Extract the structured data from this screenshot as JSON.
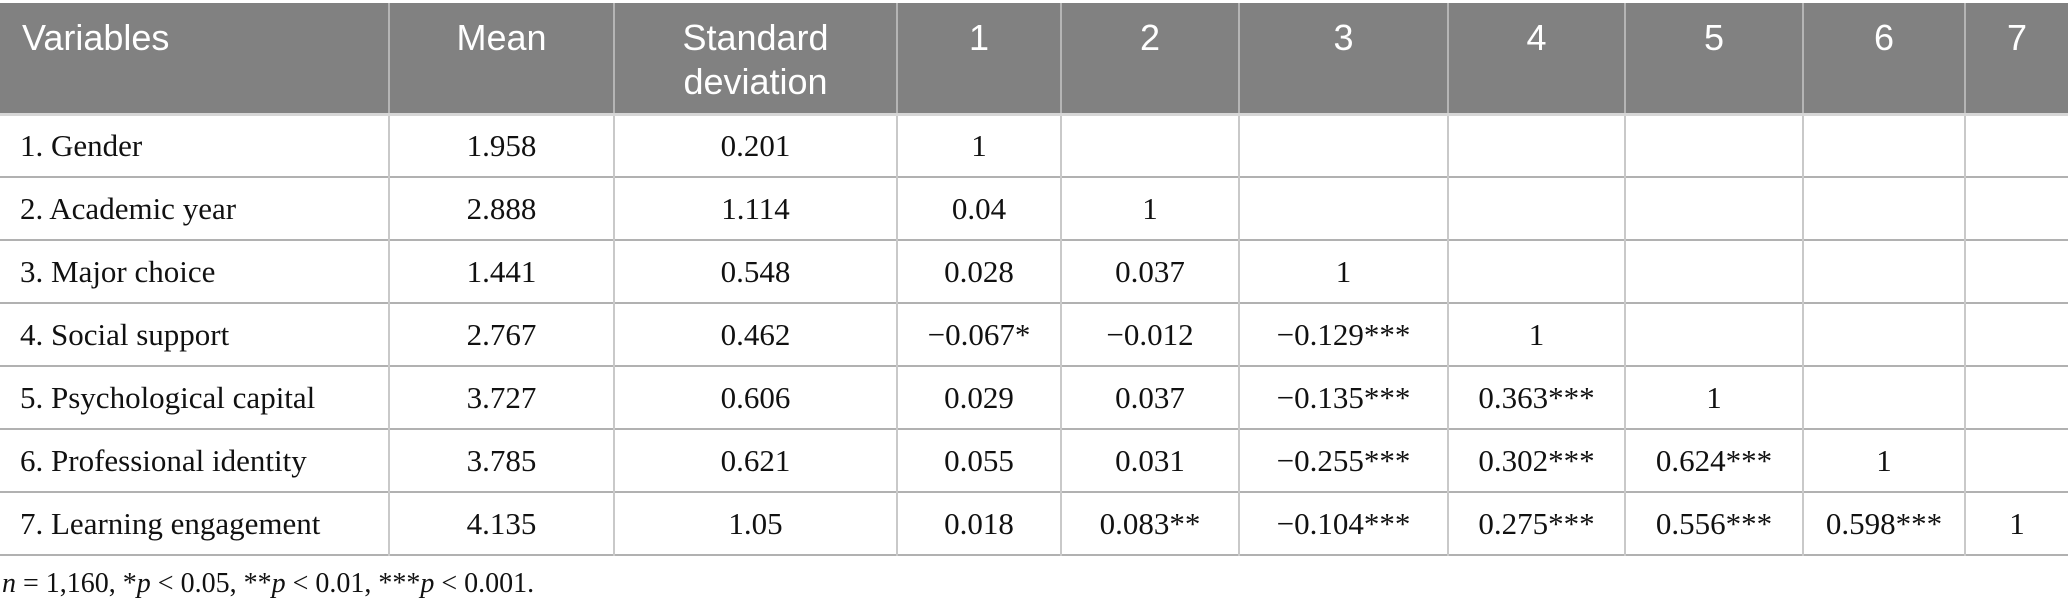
{
  "table": {
    "columns": [
      "Variables",
      "Mean",
      "Standard deviation",
      "1",
      "2",
      "3",
      "4",
      "5",
      "6",
      "7"
    ],
    "rows": [
      {
        "label": "1. Gender",
        "mean": "1.958",
        "sd": "0.201",
        "r": [
          "1",
          "",
          "",
          "",
          "",
          "",
          ""
        ]
      },
      {
        "label": "2. Academic year",
        "mean": "2.888",
        "sd": "1.114",
        "r": [
          "0.04",
          "1",
          "",
          "",
          "",
          "",
          ""
        ]
      },
      {
        "label": "3. Major choice",
        "mean": "1.441",
        "sd": "0.548",
        "r": [
          "0.028",
          "0.037",
          "1",
          "",
          "",
          "",
          ""
        ]
      },
      {
        "label": "4. Social support",
        "mean": "2.767",
        "sd": "0.462",
        "r": [
          "−0.067*",
          "−0.012",
          "−0.129***",
          "1",
          "",
          "",
          ""
        ]
      },
      {
        "label": "5. Psychological capital",
        "mean": "3.727",
        "sd": "0.606",
        "r": [
          "0.029",
          "0.037",
          "−0.135***",
          "0.363***",
          "1",
          "",
          ""
        ]
      },
      {
        "label": "6. Professional identity",
        "mean": "3.785",
        "sd": "0.621",
        "r": [
          "0.055",
          "0.031",
          "−0.255***",
          "0.302***",
          "0.624***",
          "1",
          ""
        ]
      },
      {
        "label": "7. Learning engagement",
        "mean": "4.135",
        "sd": "1.05",
        "r": [
          "0.018",
          "0.083**",
          "−0.104***",
          "0.275***",
          "0.556***",
          "0.598***",
          "1"
        ]
      }
    ]
  },
  "footnote": {
    "segments": [
      {
        "text": "n",
        "italic": true
      },
      {
        "text": " = 1,160, *",
        "italic": false
      },
      {
        "text": "p",
        "italic": true
      },
      {
        "text": " < 0.05, **",
        "italic": false
      },
      {
        "text": "p",
        "italic": true
      },
      {
        "text": " < 0.01, ***",
        "italic": false
      },
      {
        "text": "p",
        "italic": true
      },
      {
        "text": " < 0.001.",
        "italic": false
      }
    ]
  },
  "colors": {
    "header_bg": "#818181",
    "header_text": "#ffffff",
    "body_text": "#111111",
    "row_line": "#b1b1b1",
    "column_line": "#c9c9c9",
    "header_separator": "#b5b5b5",
    "header_bottom_line": "#d6d6d6"
  }
}
